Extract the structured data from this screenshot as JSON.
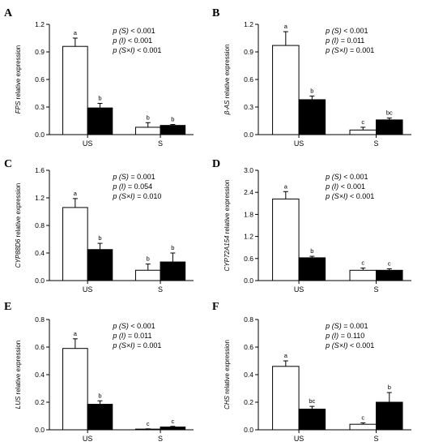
{
  "chart_data": [
    {
      "panel": "A",
      "type": "bar",
      "ylabel_italic": "FPS",
      "ylabel_rest": " relative expression",
      "categories": [
        "US",
        "S"
      ],
      "ylim": [
        0,
        1.2
      ],
      "yticks": [
        "0.0",
        "0.3",
        "0.6",
        "0.9",
        "1.2"
      ],
      "series": [
        {
          "fill": "#ffffff",
          "values": [
            0.96,
            0.08
          ],
          "errors": [
            0.09,
            0.05
          ],
          "letters": [
            "a",
            "b"
          ]
        },
        {
          "fill": "#000000",
          "values": [
            0.29,
            0.1
          ],
          "errors": [
            0.05,
            0.01
          ],
          "letters": [
            "b",
            "b"
          ]
        }
      ],
      "stats": [
        [
          "(S)",
          " < 0.001"
        ],
        [
          "(I)",
          " < 0.001"
        ],
        [
          "(S×I)",
          " < 0.001"
        ]
      ]
    },
    {
      "panel": "B",
      "type": "bar",
      "ylabel_italic": "β-AS",
      "ylabel_rest": " relative expression",
      "categories": [
        "US",
        "S"
      ],
      "ylim": [
        0,
        1.2
      ],
      "yticks": [
        "0.0",
        "0.3",
        "0.6",
        "0.9",
        "1.2"
      ],
      "series": [
        {
          "fill": "#ffffff",
          "values": [
            0.97,
            0.05
          ],
          "errors": [
            0.15,
            0.03
          ],
          "letters": [
            "a",
            "c"
          ]
        },
        {
          "fill": "#000000",
          "values": [
            0.38,
            0.16
          ],
          "errors": [
            0.04,
            0.02
          ],
          "letters": [
            "b",
            "bc"
          ]
        }
      ],
      "stats": [
        [
          "(S)",
          " < 0.001"
        ],
        [
          "(I)",
          " = 0.011"
        ],
        [
          "(S×I)",
          " = 0.001"
        ]
      ]
    },
    {
      "panel": "C",
      "type": "bar",
      "ylabel_italic": "CYP88D6",
      "ylabel_rest": " relative expression",
      "categories": [
        "US",
        "S"
      ],
      "ylim": [
        0,
        1.6
      ],
      "yticks": [
        "0.0",
        "0.4",
        "0.8",
        "1.2",
        "1.6"
      ],
      "series": [
        {
          "fill": "#ffffff",
          "values": [
            1.06,
            0.15
          ],
          "errors": [
            0.13,
            0.09
          ],
          "letters": [
            "a",
            "b"
          ]
        },
        {
          "fill": "#000000",
          "values": [
            0.45,
            0.27
          ],
          "errors": [
            0.09,
            0.13
          ],
          "letters": [
            "b",
            "b"
          ]
        }
      ],
      "stats": [
        [
          "(S)",
          " = 0.001"
        ],
        [
          "(I)",
          " = 0.054"
        ],
        [
          "(S×I)",
          " = 0.010"
        ]
      ]
    },
    {
      "panel": "D",
      "type": "bar",
      "ylabel_italic": "CYP72A154",
      "ylabel_rest": " relative expression",
      "categories": [
        "US",
        "S"
      ],
      "ylim": [
        0,
        3.0
      ],
      "yticks": [
        "0.0",
        "0.6",
        "1.2",
        "1.8",
        "2.4",
        "3.0"
      ],
      "series": [
        {
          "fill": "#ffffff",
          "values": [
            2.22,
            0.28
          ],
          "errors": [
            0.2,
            0.06
          ],
          "letters": [
            "a",
            "c"
          ]
        },
        {
          "fill": "#000000",
          "values": [
            0.62,
            0.28
          ],
          "errors": [
            0.04,
            0.04
          ],
          "letters": [
            "b",
            "c"
          ]
        }
      ],
      "stats": [
        [
          "(S)",
          " < 0.001"
        ],
        [
          "(I)",
          " < 0.001"
        ],
        [
          "(S×I)",
          " < 0.001"
        ]
      ]
    },
    {
      "panel": "E",
      "type": "bar",
      "ylabel_italic": "LUS",
      "ylabel_rest": " relative expression",
      "categories": [
        "US",
        "S"
      ],
      "ylim": [
        0,
        0.8
      ],
      "yticks": [
        "0.0",
        "0.2",
        "0.4",
        "0.6",
        "0.8"
      ],
      "series": [
        {
          "fill": "#ffffff",
          "values": [
            0.59,
            0.005
          ],
          "errors": [
            0.07,
            0.002
          ],
          "letters": [
            "a",
            "c"
          ]
        },
        {
          "fill": "#000000",
          "values": [
            0.185,
            0.02
          ],
          "errors": [
            0.025,
            0.005
          ],
          "letters": [
            "b",
            "c"
          ]
        }
      ],
      "stats": [
        [
          "(S)",
          " < 0.001"
        ],
        [
          "(I)",
          " = 0.011"
        ],
        [
          "(S×I)",
          " = 0.001"
        ]
      ]
    },
    {
      "panel": "F",
      "type": "bar",
      "ylabel_italic": "CHS",
      "ylabel_rest": " relative expression",
      "categories": [
        "US",
        "S"
      ],
      "ylim": [
        0,
        0.8
      ],
      "yticks": [
        "0.0",
        "0.2",
        "0.4",
        "0.6",
        "0.8"
      ],
      "series": [
        {
          "fill": "#ffffff",
          "values": [
            0.46,
            0.04
          ],
          "errors": [
            0.04,
            0.01
          ],
          "letters": [
            "a",
            "c"
          ]
        },
        {
          "fill": "#000000",
          "values": [
            0.15,
            0.2
          ],
          "errors": [
            0.02,
            0.07
          ],
          "letters": [
            "bc",
            "b"
          ]
        }
      ],
      "stats": [
        [
          "(S)",
          " = 0.001"
        ],
        [
          "(I)",
          " = 0.110"
        ],
        [
          "(S×I)",
          " < 0.001"
        ]
      ]
    }
  ]
}
